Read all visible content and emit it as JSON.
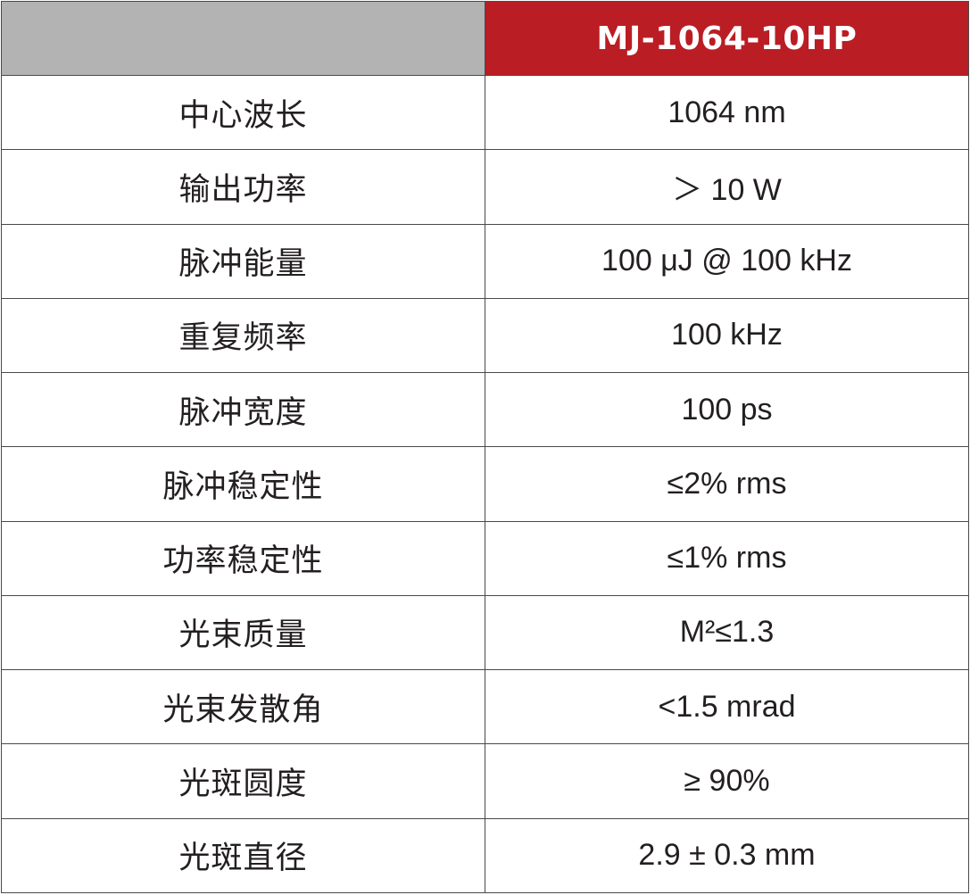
{
  "table": {
    "header": {
      "blank": "",
      "model": "MJ-1064-10HP"
    },
    "colors": {
      "header_blank_bg": "#b3b3b3",
      "header_model_bg": "#bb1d24",
      "border": "#4a4a4a",
      "text": "#231f20"
    },
    "rows": [
      {
        "name": "中心波长",
        "value": "1064 nm"
      },
      {
        "name": "输出功率",
        "value": "＞ 10 W"
      },
      {
        "name": "脉冲能量",
        "value": "100 μJ @ 100 kHz"
      },
      {
        "name": "重复频率",
        "value": "100 kHz"
      },
      {
        "name": "脉冲宽度",
        "value": "100 ps"
      },
      {
        "name": "脉冲稳定性",
        "value": "≤2% rms"
      },
      {
        "name": "功率稳定性",
        "value": "≤1% rms"
      },
      {
        "name": "光束质量",
        "value": "M²≤1.3"
      },
      {
        "name": "光束发散角",
        "value": "<1.5 mrad"
      },
      {
        "name": "光斑圆度",
        "value": "≥ 90%"
      },
      {
        "name": "光斑直径",
        "value": "2.9 ± 0.3 mm"
      }
    ]
  }
}
